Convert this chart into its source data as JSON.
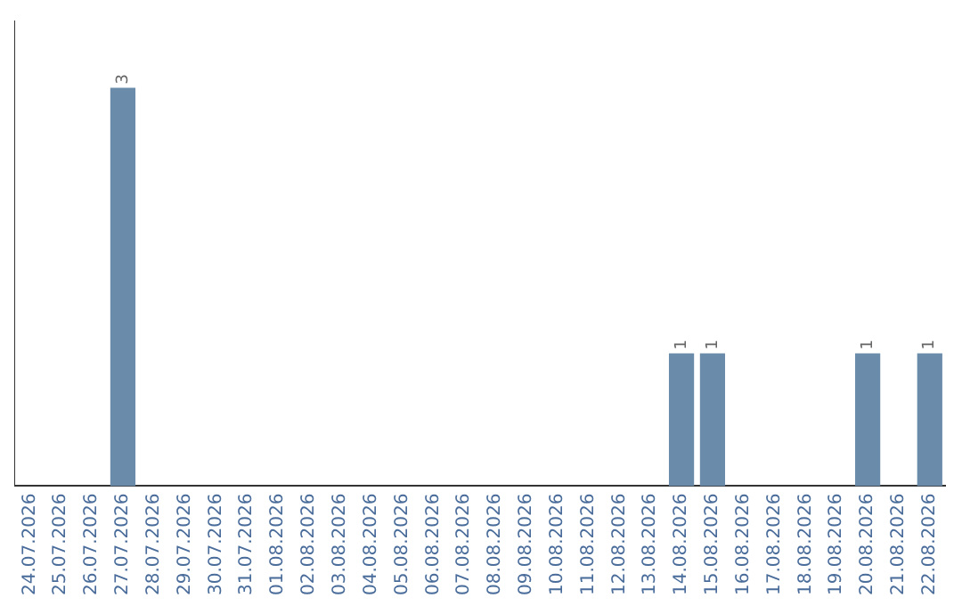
{
  "chart_data": {
    "type": "bar",
    "categories": [
      "24.07.2026",
      "25.07.2026",
      "26.07.2026",
      "27.07.2026",
      "28.07.2026",
      "29.07.2026",
      "30.07.2026",
      "31.07.2026",
      "01.08.2026",
      "02.08.2026",
      "03.08.2026",
      "04.08.2026",
      "05.08.2026",
      "06.08.2026",
      "07.08.2026",
      "08.08.2026",
      "09.08.2026",
      "10.08.2026",
      "11.08.2026",
      "12.08.2026",
      "13.08.2026",
      "14.08.2026",
      "15.08.2026",
      "16.08.2026",
      "17.08.2026",
      "18.08.2026",
      "19.08.2026",
      "20.08.2026",
      "21.08.2026",
      "22.08.2026"
    ],
    "values": [
      0,
      0,
      0,
      3,
      0,
      0,
      0,
      0,
      0,
      0,
      0,
      0,
      0,
      0,
      0,
      0,
      0,
      0,
      0,
      0,
      0,
      1,
      1,
      0,
      0,
      0,
      0,
      1,
      0,
      1
    ],
    "value_labels": [
      null,
      null,
      null,
      "3",
      null,
      null,
      null,
      null,
      null,
      null,
      null,
      null,
      null,
      null,
      null,
      null,
      null,
      null,
      null,
      null,
      null,
      "1",
      "1",
      null,
      null,
      null,
      null,
      "1",
      null,
      "1"
    ],
    "color": "#6a8caa",
    "grid": false,
    "legend": false,
    "tick_labels": "x"
  }
}
